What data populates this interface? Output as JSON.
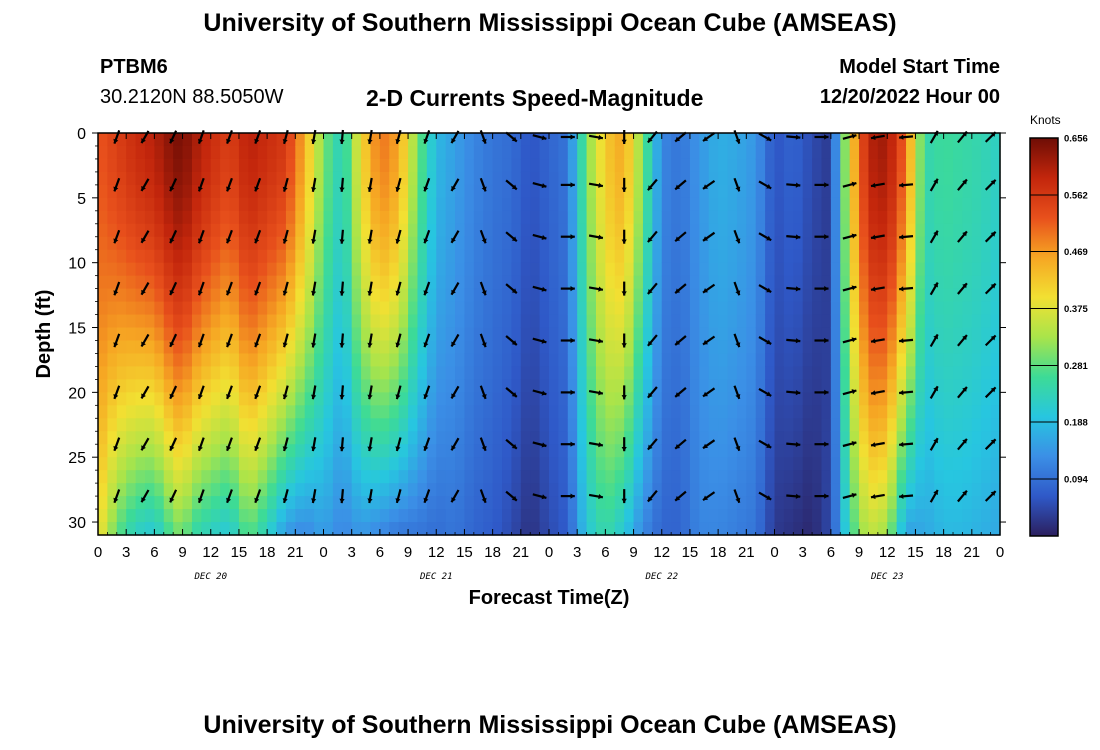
{
  "page": {
    "title": "University of Southern Mississippi Ocean Cube (AMSEAS)",
    "station_id": "PTBM6",
    "coords": "30.2120N  88.5050W",
    "subtitle": "2-D Currents Speed-Magnitude",
    "model_label": "Model Start Time",
    "model_time": "12/20/2022 Hour 00",
    "footer_title": "University of Southern Mississippi Ocean Cube (AMSEAS)"
  },
  "colors": {
    "scale": [
      "#2b1f5e",
      "#2f59c8",
      "#3b8fe6",
      "#27c6e0",
      "#3ddb96",
      "#a9e44a",
      "#f2e032",
      "#f6a623",
      "#e8501c",
      "#c3260c",
      "#6e0d05"
    ]
  },
  "chart_data": {
    "type": "heatmap",
    "title": "2-D Currents Speed-Magnitude",
    "xlabel": "Forecast Time(Z)",
    "ylabel": "Depth (ft)",
    "ylim": [
      0,
      31
    ],
    "xlim": [
      0,
      96
    ],
    "x_tick_values": [
      0,
      3,
      6,
      9,
      12,
      15,
      18,
      21,
      24,
      27,
      30,
      33,
      36,
      39,
      42,
      45,
      48,
      51,
      54,
      57,
      60,
      63,
      66,
      69,
      72,
      75,
      78,
      81,
      84,
      87,
      90,
      93,
      96
    ],
    "x_tick_labels": [
      "0",
      "3",
      "6",
      "9",
      "12",
      "15",
      "18",
      "21",
      "0",
      "3",
      "6",
      "9",
      "12",
      "15",
      "18",
      "21",
      "0",
      "3",
      "6",
      "9",
      "12",
      "15",
      "18",
      "21",
      "0",
      "3",
      "6",
      "9",
      "12",
      "15",
      "18",
      "21",
      "0"
    ],
    "y_ticks": [
      0,
      5,
      10,
      15,
      20,
      25,
      30
    ],
    "day_labels": [
      {
        "label": "DEC 20",
        "hour": 12
      },
      {
        "label": "DEC 21",
        "hour": 36
      },
      {
        "label": "DEC 22",
        "hour": 60
      },
      {
        "label": "DEC 23",
        "hour": 84
      }
    ],
    "colorbar": {
      "label": "Knots",
      "ticks": [
        0.656,
        0.562,
        0.469,
        0.375,
        0.281,
        0.188,
        0.094
      ],
      "range": [
        0.0,
        0.656
      ]
    },
    "speed_profile": {
      "hours": [
        0,
        2,
        4,
        6,
        8,
        9,
        10,
        12,
        14,
        16,
        18,
        20,
        22,
        24,
        26,
        28,
        30,
        32,
        34,
        36,
        38,
        40,
        42,
        44,
        46,
        48,
        50,
        52,
        54,
        56,
        58,
        60,
        62,
        64,
        66,
        68,
        70,
        72,
        74,
        76,
        78,
        80,
        82,
        84,
        86,
        88,
        90,
        92,
        94,
        96
      ],
      "surface_knots": [
        0.52,
        0.55,
        0.58,
        0.6,
        0.64,
        0.65,
        0.62,
        0.58,
        0.55,
        0.6,
        0.58,
        0.56,
        0.45,
        0.3,
        0.22,
        0.4,
        0.5,
        0.46,
        0.3,
        0.18,
        0.15,
        0.12,
        0.1,
        0.09,
        0.06,
        0.08,
        0.1,
        0.3,
        0.42,
        0.46,
        0.3,
        0.12,
        0.1,
        0.14,
        0.17,
        0.16,
        0.14,
        0.06,
        0.08,
        0.05,
        0.03,
        0.4,
        0.6,
        0.62,
        0.5,
        0.24,
        0.26,
        0.25,
        0.24,
        0.22
      ],
      "bottom_knots": [
        0.4,
        0.28,
        0.22,
        0.2,
        0.28,
        0.3,
        0.25,
        0.22,
        0.2,
        0.28,
        0.22,
        0.14,
        0.12,
        0.15,
        0.12,
        0.14,
        0.12,
        0.1,
        0.1,
        0.09,
        0.1,
        0.08,
        0.07,
        0.05,
        0.02,
        0.05,
        0.07,
        0.2,
        0.25,
        0.2,
        0.12,
        0.08,
        0.08,
        0.12,
        0.12,
        0.11,
        0.1,
        0.03,
        0.02,
        0.01,
        0.05,
        0.25,
        0.35,
        0.32,
        0.15,
        0.16,
        0.18,
        0.18,
        0.17,
        0.16
      ]
    },
    "vector_depths": [
      0,
      4,
      8,
      12,
      16,
      20,
      24,
      28
    ],
    "vector_hours": [
      2,
      5,
      8,
      11,
      14,
      17,
      20,
      23,
      26,
      29,
      32,
      35,
      38,
      41,
      44,
      47,
      50,
      53,
      56,
      59,
      62,
      65,
      68,
      71,
      74,
      77,
      80,
      83,
      86,
      89,
      92,
      95
    ],
    "vector_direction_deg": [
      200,
      210,
      205,
      200,
      200,
      200,
      195,
      190,
      185,
      190,
      195,
      200,
      210,
      160,
      130,
      105,
      90,
      100,
      180,
      220,
      230,
      235,
      160,
      120,
      95,
      90,
      75,
      260,
      265,
      30,
      40,
      45
    ]
  }
}
